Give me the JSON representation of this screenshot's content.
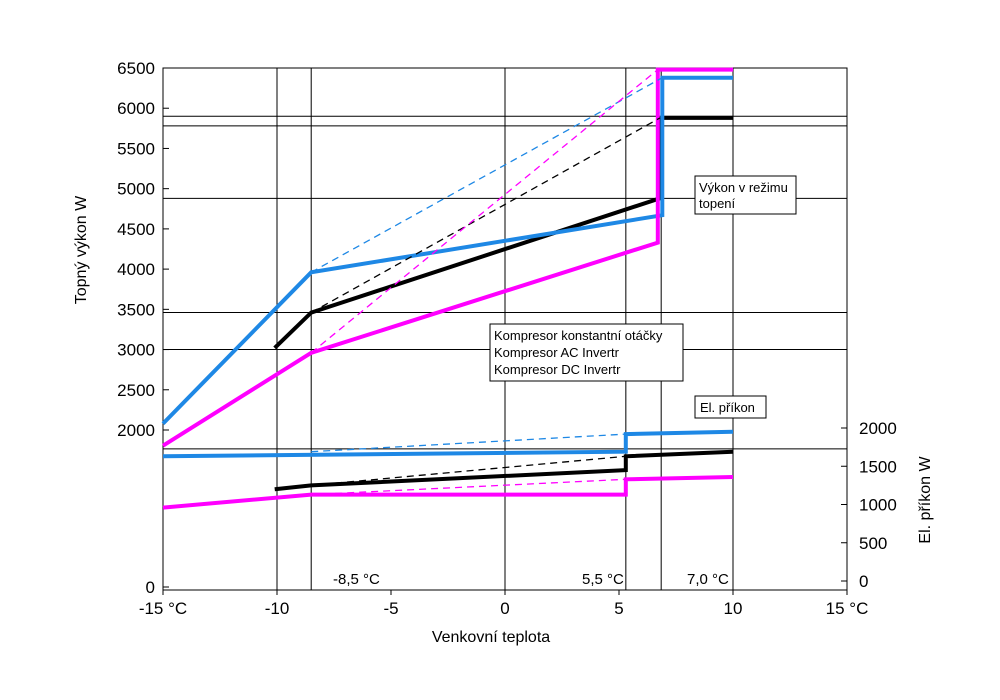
{
  "chart_data": {
    "type": "line",
    "xlabel": "Venkovní teplota",
    "ylabel_left": "Topný výkon W",
    "ylabel_right": "El. příkon W",
    "x_ticks": [
      "-15 °C",
      "-10",
      "-5",
      "0",
      "5",
      "10",
      "15 °C"
    ],
    "y_left_ticks": [
      "6500",
      "6000",
      "5500",
      "5000",
      "4500",
      "4000",
      "3500",
      "3000",
      "2500",
      "2000",
      "0"
    ],
    "y_right_ticks": [
      "2000",
      "1500",
      "1000",
      "500",
      "0"
    ],
    "xlim": [
      -15,
      15
    ],
    "ylim_left": [
      0,
      6500
    ],
    "ylim_right": [
      0,
      2000
    ],
    "annotations": {
      "vykon_box": [
        "Výkon v režimu",
        "topení"
      ],
      "prikon_box": "El. příkon",
      "t1": "-8,5 °C",
      "t2": "5,5 °C",
      "t3": "7,0 °C"
    },
    "legend": [
      {
        "label": "Kompresor konstantní otáčky",
        "color": "#000000"
      },
      {
        "label": "Kompresor AC Invertr",
        "color": "#1e88e5"
      },
      {
        "label": "Kompresor DC Invertr",
        "color": "#ff00ff"
      }
    ],
    "series": [
      {
        "name": "Kompresor konstantní otáčky",
        "kind": "heating",
        "style": "solid",
        "color": "#000000",
        "points": [
          [
            -10.1,
            3020
          ],
          [
            -8.5,
            3460
          ],
          [
            6.8,
            4880
          ],
          [
            6.8,
            5880
          ],
          [
            10,
            5880
          ]
        ]
      },
      {
        "name": "Kompresor AC Invertr",
        "kind": "heating",
        "style": "solid",
        "color": "#1e88e5",
        "points": [
          [
            -15,
            2080
          ],
          [
            -8.5,
            3960
          ],
          [
            6.9,
            4670
          ],
          [
            6.9,
            6380
          ],
          [
            10,
            6380
          ]
        ]
      },
      {
        "name": "Kompresor DC Invertr",
        "kind": "heating",
        "style": "solid",
        "color": "#ff00ff",
        "points": [
          [
            -15,
            1800
          ],
          [
            -8.5,
            2960
          ],
          [
            6.7,
            4330
          ],
          [
            6.7,
            6480
          ],
          [
            10,
            6480
          ]
        ]
      },
      {
        "name": "Kompresor konstantní otáčky",
        "kind": "heating-ideal",
        "style": "dashed",
        "color": "#000000",
        "points": [
          [
            -8.5,
            3460
          ],
          [
            6.8,
            5880
          ]
        ]
      },
      {
        "name": "Kompresor AC Invertr",
        "kind": "heating-ideal",
        "style": "dashed",
        "color": "#1e88e5",
        "points": [
          [
            -8.5,
            3960
          ],
          [
            6.9,
            6380
          ]
        ]
      },
      {
        "name": "Kompresor DC Invertr",
        "kind": "heating-ideal",
        "style": "dashed",
        "color": "#ff00ff",
        "points": [
          [
            -8.5,
            2960
          ],
          [
            6.7,
            6480
          ]
        ]
      },
      {
        "name": "Kompresor konstantní otáčky",
        "kind": "power",
        "style": "solid",
        "color": "#000000",
        "points": [
          [
            -10.1,
            1200
          ],
          [
            -8.5,
            1250
          ],
          [
            5.3,
            1450
          ],
          [
            5.3,
            1630
          ],
          [
            10,
            1690
          ]
        ]
      },
      {
        "name": "Kompresor AC Invertr",
        "kind": "power",
        "style": "solid",
        "color": "#1e88e5",
        "points": [
          [
            -15,
            1630
          ],
          [
            5.3,
            1690
          ],
          [
            5.3,
            1920
          ],
          [
            10,
            1950
          ]
        ]
      },
      {
        "name": "Kompresor DC Invertr",
        "kind": "power",
        "style": "solid",
        "color": "#ff00ff",
        "points": [
          [
            -15,
            960
          ],
          [
            -8.5,
            1130
          ],
          [
            5.3,
            1130
          ],
          [
            5.3,
            1330
          ],
          [
            10,
            1360
          ]
        ]
      },
      {
        "name": "Kompresor konstantní otáčky",
        "kind": "power-ideal",
        "style": "dashed",
        "color": "#000000",
        "points": [
          [
            -8.5,
            1250
          ],
          [
            5.3,
            1630
          ]
        ]
      },
      {
        "name": "Kompresor AC Invertr",
        "kind": "power-ideal",
        "style": "dashed",
        "color": "#1e88e5",
        "points": [
          [
            -8.5,
            1690
          ],
          [
            5.3,
            1920
          ]
        ]
      },
      {
        "name": "Kompresor DC Invertr",
        "kind": "power-ideal",
        "style": "dashed",
        "color": "#ff00ff",
        "points": [
          [
            -8.5,
            1130
          ],
          [
            5.3,
            1330
          ]
        ]
      }
    ]
  }
}
